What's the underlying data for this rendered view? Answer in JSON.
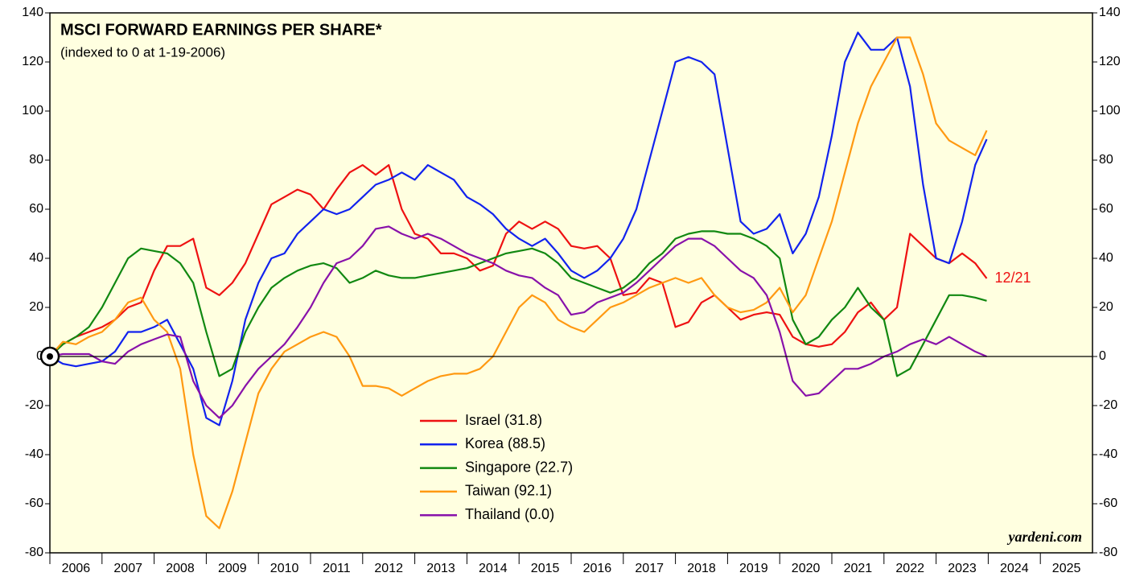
{
  "chart_data": {
    "type": "line",
    "title": "MSCI FORWARD EARNINGS PER SHARE*",
    "subtitle": "(indexed to 0 at 1-19-2006)",
    "annotation": "12/21",
    "source": "yardeni.com",
    "x": [
      2006,
      2006.25,
      2006.5,
      2006.75,
      2007,
      2007.25,
      2007.5,
      2007.75,
      2008,
      2008.25,
      2008.5,
      2008.75,
      2009,
      2009.25,
      2009.5,
      2009.75,
      2010,
      2010.25,
      2010.5,
      2010.75,
      2011,
      2011.25,
      2011.5,
      2011.75,
      2012,
      2012.25,
      2012.5,
      2012.75,
      2013,
      2013.25,
      2013.5,
      2013.75,
      2014,
      2014.25,
      2014.5,
      2014.75,
      2015,
      2015.25,
      2015.5,
      2015.75,
      2016,
      2016.25,
      2016.5,
      2016.75,
      2017,
      2017.25,
      2017.5,
      2017.75,
      2018,
      2018.25,
      2018.5,
      2018.75,
      2019,
      2019.25,
      2019.5,
      2019.75,
      2020,
      2020.25,
      2020.5,
      2020.75,
      2021,
      2021.25,
      2021.5,
      2021.75,
      2022,
      2022.25,
      2022.5,
      2022.75,
      2023,
      2023.25,
      2023.5,
      2023.75,
      2023.97
    ],
    "series": [
      {
        "name": "Israel (31.8)",
        "color": "#ee1111",
        "values": [
          0,
          5,
          8,
          10,
          12,
          15,
          20,
          22,
          35,
          45,
          45,
          48,
          28,
          25,
          30,
          38,
          50,
          62,
          65,
          68,
          66,
          60,
          68,
          75,
          78,
          74,
          78,
          60,
          50,
          48,
          42,
          42,
          40,
          35,
          37,
          50,
          55,
          52,
          55,
          52,
          45,
          44,
          45,
          40,
          25,
          26,
          32,
          30,
          12,
          14,
          22,
          25,
          20,
          15,
          17,
          18,
          17,
          8,
          5,
          4,
          5,
          10,
          18,
          22,
          15,
          20,
          50,
          45,
          40,
          38,
          42,
          38,
          31.8
        ]
      },
      {
        "name": "Korea (88.5)",
        "color": "#1122ee",
        "values": [
          0,
          -3,
          -4,
          -3,
          -2,
          2,
          10,
          10,
          12,
          15,
          5,
          -5,
          -25,
          -28,
          -10,
          15,
          30,
          40,
          42,
          50,
          55,
          60,
          58,
          60,
          65,
          70,
          72,
          75,
          72,
          78,
          75,
          72,
          65,
          62,
          58,
          52,
          48,
          45,
          48,
          42,
          35,
          32,
          35,
          40,
          48,
          60,
          80,
          100,
          120,
          122,
          120,
          115,
          85,
          55,
          50,
          52,
          58,
          42,
          50,
          65,
          90,
          120,
          132,
          125,
          125,
          130,
          110,
          70,
          40,
          38,
          55,
          78,
          88.5
        ]
      },
      {
        "name": "Singapore (22.7)",
        "color": "#118811",
        "values": [
          0,
          5,
          8,
          12,
          20,
          30,
          40,
          44,
          43,
          42,
          38,
          30,
          10,
          -8,
          -5,
          10,
          20,
          28,
          32,
          35,
          37,
          38,
          36,
          30,
          32,
          35,
          33,
          32,
          32,
          33,
          34,
          35,
          36,
          38,
          40,
          42,
          43,
          44,
          42,
          38,
          32,
          30,
          28,
          26,
          28,
          32,
          38,
          42,
          48,
          50,
          51,
          51,
          50,
          50,
          48,
          45,
          40,
          15,
          5,
          8,
          15,
          20,
          28,
          20,
          15,
          -8,
          -5,
          5,
          15,
          25,
          25,
          24,
          22.7
        ]
      },
      {
        "name": "Taiwan (92.1)",
        "color": "#ff9911",
        "values": [
          0,
          6,
          5,
          8,
          10,
          15,
          22,
          24,
          15,
          10,
          -5,
          -40,
          -65,
          -70,
          -55,
          -35,
          -15,
          -5,
          2,
          5,
          8,
          10,
          8,
          0,
          -12,
          -12,
          -13,
          -16,
          -13,
          -10,
          -8,
          -7,
          -7,
          -5,
          0,
          10,
          20,
          25,
          22,
          15,
          12,
          10,
          15,
          20,
          22,
          25,
          28,
          30,
          32,
          30,
          32,
          25,
          20,
          18,
          19,
          22,
          28,
          18,
          25,
          40,
          55,
          75,
          95,
          110,
          120,
          130,
          130,
          115,
          95,
          88,
          85,
          82,
          92.1
        ]
      },
      {
        "name": "Thailand (0.0)",
        "color": "#8811aa",
        "values": [
          0,
          1,
          1,
          1,
          -2,
          -3,
          2,
          5,
          7,
          9,
          8,
          -10,
          -20,
          -25,
          -20,
          -12,
          -5,
          0,
          5,
          12,
          20,
          30,
          38,
          40,
          45,
          52,
          53,
          50,
          48,
          50,
          48,
          45,
          42,
          40,
          38,
          35,
          33,
          32,
          28,
          25,
          17,
          18,
          22,
          24,
          26,
          30,
          35,
          40,
          45,
          48,
          48,
          45,
          40,
          35,
          32,
          25,
          10,
          -10,
          -16,
          -15,
          -10,
          -5,
          -5,
          -3,
          0,
          2,
          5,
          7,
          5,
          8,
          5,
          2,
          0
        ]
      }
    ],
    "xlim": [
      2006,
      2026
    ],
    "xticks": [
      2006,
      2007,
      2008,
      2009,
      2010,
      2011,
      2012,
      2013,
      2014,
      2015,
      2016,
      2017,
      2018,
      2019,
      2020,
      2021,
      2022,
      2023,
      2024,
      2025
    ],
    "ylim": [
      -80,
      140
    ],
    "yticks": [
      -80,
      -60,
      -40,
      -20,
      0,
      20,
      40,
      60,
      80,
      100,
      120,
      140
    ],
    "y2lim": [
      -80,
      140
    ],
    "y2ticks": [
      -80,
      -60,
      -40,
      -20,
      0,
      20,
      40,
      60,
      80,
      100,
      120,
      140
    ],
    "background": "#ffffe0"
  }
}
